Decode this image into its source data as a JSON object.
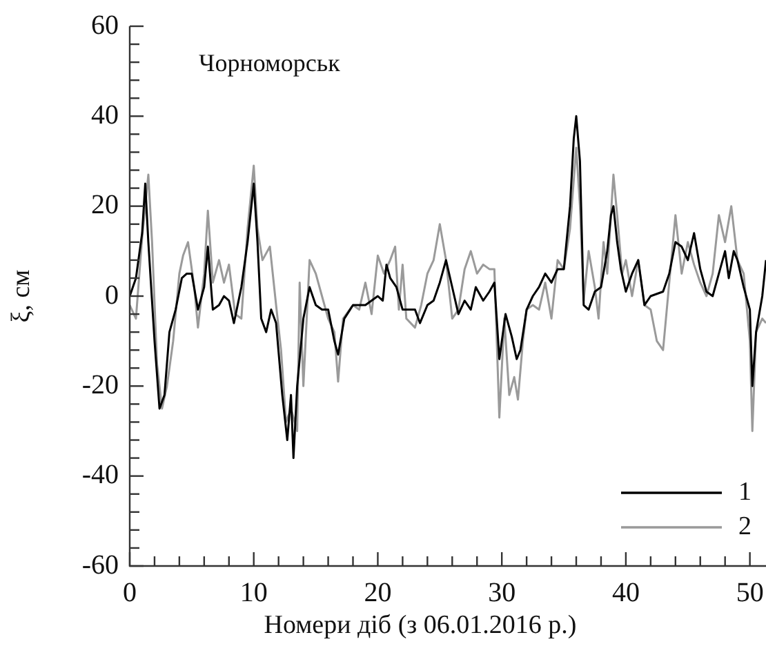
{
  "chart_data": {
    "type": "line",
    "title": "Чорноморськ",
    "xlabel": "Номери діб (з 06.01.2016 р.)",
    "ylabel": "ξ, см",
    "xlim": [
      0,
      51.3
    ],
    "ylim": [
      -60,
      60
    ],
    "xticks": [
      0,
      {
        "value": 2,
        "label": null
      },
      {
        "value": 4,
        "label": null
      },
      {
        "value": 6,
        "label": null
      },
      {
        "value": 8,
        "label": null
      },
      10,
      {
        "value": 12,
        "label": null
      },
      {
        "value": 14,
        "label": null
      },
      {
        "value": 16,
        "label": null
      },
      {
        "value": 18,
        "label": null
      },
      20,
      {
        "value": 22,
        "label": null
      },
      {
        "value": 24,
        "label": null
      },
      {
        "value": 26,
        "label": null
      },
      {
        "value": 28,
        "label": null
      },
      30,
      {
        "value": 32,
        "label": null
      },
      {
        "value": 34,
        "label": null
      },
      {
        "value": 36,
        "label": null
      },
      {
        "value": 38,
        "label": null
      },
      40,
      {
        "value": 42,
        "label": null
      },
      {
        "value": 44,
        "label": null
      },
      {
        "value": 46,
        "label": null
      },
      {
        "value": 48,
        "label": null
      },
      50
    ],
    "yticks": [
      -60,
      {
        "value": -56,
        "label": null
      },
      {
        "value": -52,
        "label": null
      },
      {
        "value": -48,
        "label": null
      },
      {
        "value": -44,
        "label": null
      },
      -40,
      {
        "value": -36,
        "label": null
      },
      {
        "value": -32,
        "label": null
      },
      {
        "value": -28,
        "label": null
      },
      {
        "value": -24,
        "label": null
      },
      -20,
      {
        "value": -16,
        "label": null
      },
      {
        "value": -12,
        "label": null
      },
      {
        "value": -8,
        "label": null
      },
      {
        "value": -4,
        "label": null
      },
      0,
      {
        "value": 4,
        "label": null
      },
      {
        "value": 8,
        "label": null
      },
      {
        "value": 12,
        "label": null
      },
      {
        "value": 16,
        "label": null
      },
      20,
      {
        "value": 24,
        "label": null
      },
      {
        "value": 28,
        "label": null
      },
      {
        "value": 32,
        "label": null
      },
      {
        "value": 36,
        "label": null
      },
      40,
      {
        "value": 44,
        "label": null
      },
      {
        "value": 48,
        "label": null
      },
      {
        "value": 52,
        "label": null
      },
      {
        "value": 56,
        "label": null
      },
      60
    ],
    "grid": false,
    "legend": "bottom right",
    "marker": "none",
    "line_style": "solid",
    "series": [
      {
        "name": "1",
        "color": "#000000",
        "x": [
          0,
          0.5,
          1,
          1.25,
          1.5,
          2,
          2.4,
          2.8,
          3.2,
          3.7,
          4.2,
          4.6,
          5,
          5.5,
          6,
          6.3,
          6.7,
          7.2,
          7.6,
          8,
          8.4,
          9,
          9.5,
          10,
          10.3,
          10.6,
          11,
          11.4,
          11.8,
          12.3,
          12.7,
          13,
          13.2,
          13.5,
          14,
          14.5,
          15,
          15.5,
          16,
          16.5,
          16.8,
          17.3,
          18,
          19,
          20,
          20.4,
          20.7,
          21,
          21.5,
          22,
          22.5,
          23,
          23.4,
          24,
          24.5,
          25,
          25.5,
          26,
          26.5,
          27,
          27.5,
          27.9,
          28.5,
          29,
          29.4,
          29.8,
          30.3,
          30.8,
          31.2,
          31.5,
          32,
          32.5,
          33,
          33.5,
          34,
          34.5,
          35,
          35.5,
          35.8,
          36,
          36.3,
          36.6,
          37,
          37.5,
          38,
          38.5,
          38.8,
          39,
          39.3,
          39.6,
          40,
          40.5,
          41,
          41.5,
          42,
          43,
          43.5,
          44,
          44.5,
          45,
          45.5,
          46,
          46.5,
          47,
          47.5,
          48,
          48.3,
          48.7,
          49,
          49.5,
          50,
          50.2,
          50.5,
          51,
          51.3
        ],
        "values": [
          0,
          4,
          14,
          25,
          12,
          -10,
          -25,
          -22,
          -8,
          -3,
          4,
          5,
          5,
          -3,
          2,
          11,
          -3,
          -2,
          0,
          -1,
          -6,
          2,
          12,
          25,
          12,
          -5,
          -8,
          -3,
          -6,
          -22,
          -32,
          -22,
          -36,
          -20,
          -5,
          2,
          -2,
          -3,
          -3,
          -10,
          -13,
          -5,
          -2,
          -2,
          0,
          -1,
          7,
          4,
          2,
          -3,
          -3,
          -3,
          -6,
          -2,
          -1,
          3,
          8,
          2,
          -4,
          -1,
          -3,
          2,
          -1,
          1,
          3,
          -14,
          -4,
          -9,
          -14,
          -12,
          -3,
          0,
          2,
          5,
          3,
          6,
          6,
          20,
          35,
          40,
          30,
          -2,
          -3,
          1,
          2,
          10,
          18,
          20,
          12,
          6,
          1,
          5,
          8,
          -2,
          0,
          1,
          5,
          12,
          11,
          8,
          14,
          6,
          1,
          0,
          5,
          10,
          4,
          10,
          8,
          2,
          -3,
          -20,
          -8,
          0,
          8
        ]
      },
      {
        "name": "2",
        "color": "#9a9a9a",
        "x": [
          0,
          0.5,
          1,
          1.5,
          1.8,
          2.2,
          2.6,
          3,
          3.5,
          4,
          4.3,
          4.7,
          5.2,
          5.5,
          6,
          6.3,
          6.7,
          7.2,
          7.6,
          8,
          8.5,
          9,
          9.5,
          10,
          10.3,
          10.7,
          11.3,
          11.8,
          12.2,
          12.6,
          13,
          13.5,
          13.7,
          14,
          14.5,
          15,
          15.5,
          16,
          16.5,
          16.8,
          17.2,
          18,
          18.5,
          19,
          19.5,
          20,
          20.5,
          21,
          21.4,
          21.7,
          22,
          22.3,
          23,
          23.5,
          24,
          24.5,
          25,
          25.5,
          26,
          26.5,
          27,
          27.5,
          28,
          28.5,
          29,
          29.4,
          29.8,
          30.2,
          30.6,
          31,
          31.3,
          31.7,
          32,
          32.5,
          33,
          33.5,
          34,
          34.5,
          35,
          35.5,
          36,
          36.3,
          36.6,
          37,
          37.5,
          37.8,
          38.2,
          38.5,
          39,
          39.3,
          39.7,
          40,
          40.5,
          41,
          41.5,
          42,
          42.5,
          43,
          43.5,
          44,
          44.5,
          45,
          45.5,
          46,
          46.5,
          47,
          47.5,
          48,
          48.5,
          49,
          49.5,
          50,
          50.2,
          50.5,
          51,
          51.3
        ],
        "values": [
          -2,
          -5,
          13,
          27,
          12,
          -15,
          -25,
          -20,
          -10,
          5,
          9,
          12,
          2,
          -7,
          5,
          19,
          3,
          8,
          3,
          7,
          -4,
          -5,
          15,
          29,
          15,
          8,
          11,
          -2,
          -12,
          -28,
          -25,
          -30,
          3,
          -20,
          8,
          5,
          0,
          -5,
          -8,
          -19,
          -5,
          -2,
          -3,
          3,
          -4,
          9,
          5,
          8,
          11,
          -3,
          7,
          -5,
          -7,
          -2,
          5,
          8,
          16,
          8,
          -5,
          -3,
          6,
          10,
          5,
          7,
          6,
          6,
          -27,
          -5,
          -22,
          -18,
          -23,
          -10,
          -3,
          -2,
          -3,
          3,
          -5,
          8,
          6,
          15,
          33,
          20,
          -1,
          10,
          2,
          -5,
          12,
          5,
          27,
          18,
          5,
          8,
          0,
          8,
          -2,
          -3,
          -10,
          -12,
          3,
          18,
          5,
          12,
          7,
          3,
          0,
          5,
          18,
          12,
          20,
          8,
          5,
          -10,
          -30,
          -8,
          -5,
          -6
        ]
      }
    ]
  }
}
